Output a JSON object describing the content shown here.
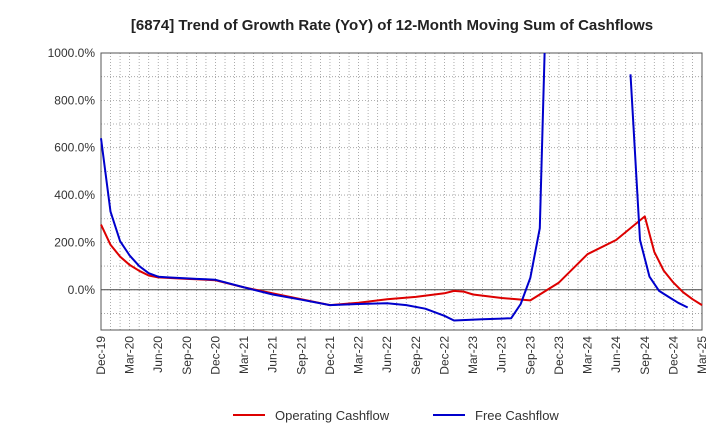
{
  "chart_data": {
    "type": "line",
    "title": "[6874]  Trend of Growth Rate (YoY) of 12-Month Moving Sum of Cashflows",
    "xlabel": "",
    "ylabel": "",
    "ylim": [
      -170,
      1000
    ],
    "y_ticks": [
      0,
      200,
      400,
      600,
      800,
      1000
    ],
    "y_tick_labels": [
      "0.0%",
      "200.0%",
      "400.0%",
      "600.0%",
      "800.0%",
      "1000.0%"
    ],
    "x_ticks": [
      "Dec-19",
      "Mar-20",
      "Jun-20",
      "Sep-20",
      "Dec-20",
      "Mar-21",
      "Jun-21",
      "Sep-21",
      "Dec-21",
      "Mar-22",
      "Jun-22",
      "Sep-22",
      "Dec-22",
      "Mar-23",
      "Jun-23",
      "Sep-23",
      "Dec-23",
      "Mar-24",
      "Jun-24",
      "Sep-24",
      "Dec-24",
      "Mar-25"
    ],
    "x_range": [
      0,
      63
    ],
    "grid": true,
    "legend_position": "bottom",
    "series": [
      {
        "name": "Operating Cashflow",
        "color": "#dd0000",
        "points": [
          [
            0,
            275
          ],
          [
            1,
            190
          ],
          [
            2,
            140
          ],
          [
            3,
            105
          ],
          [
            4,
            80
          ],
          [
            5,
            60
          ],
          [
            6,
            52
          ],
          [
            7,
            50
          ],
          [
            8,
            48
          ],
          [
            9,
            46
          ],
          [
            10,
            44
          ],
          [
            11,
            42
          ],
          [
            12,
            40
          ],
          [
            15,
            10
          ],
          [
            18,
            -15
          ],
          [
            21,
            -40
          ],
          [
            24,
            -65
          ],
          [
            27,
            -55
          ],
          [
            30,
            -40
          ],
          [
            33,
            -30
          ],
          [
            36,
            -15
          ],
          [
            37,
            -5
          ],
          [
            38,
            -8
          ],
          [
            39,
            -20
          ],
          [
            42,
            -35
          ],
          [
            45,
            -45
          ],
          [
            48,
            30
          ],
          [
            51,
            150
          ],
          [
            54,
            210
          ],
          [
            57,
            310
          ],
          [
            58,
            160
          ],
          [
            59,
            80
          ],
          [
            60,
            30
          ],
          [
            61,
            -10
          ],
          [
            62,
            -40
          ],
          [
            63,
            -65
          ]
        ]
      },
      {
        "name": "Free Cashflow",
        "color": "#0000cc",
        "points": [
          [
            0,
            640
          ],
          [
            1,
            330
          ],
          [
            2,
            205
          ],
          [
            3,
            145
          ],
          [
            4,
            100
          ],
          [
            5,
            70
          ],
          [
            6,
            55
          ],
          [
            7,
            52
          ],
          [
            8,
            50
          ],
          [
            9,
            48
          ],
          [
            10,
            46
          ],
          [
            11,
            44
          ],
          [
            12,
            42
          ],
          [
            15,
            10
          ],
          [
            18,
            -20
          ],
          [
            21,
            -42
          ],
          [
            24,
            -65
          ],
          [
            27,
            -60
          ],
          [
            30,
            -57
          ],
          [
            32,
            -65
          ],
          [
            34,
            -80
          ],
          [
            36,
            -110
          ],
          [
            37,
            -130
          ],
          [
            40,
            -125
          ],
          [
            42,
            -122
          ],
          [
            43,
            -120
          ],
          [
            44,
            -60
          ],
          [
            45,
            50
          ],
          [
            46,
            260
          ],
          [
            46.5,
            1000
          ]
        ]
      },
      {
        "name": "Free Cashflow (continued)",
        "color": "#0000cc",
        "points": [
          [
            55.5,
            910
          ],
          [
            56.5,
            210
          ],
          [
            57.5,
            55
          ],
          [
            58.5,
            -5
          ],
          [
            59.5,
            -30
          ],
          [
            60.5,
            -55
          ],
          [
            61.5,
            -75
          ]
        ]
      }
    ]
  },
  "legend": {
    "items": [
      {
        "label": "Operating Cashflow",
        "color": "#dd0000"
      },
      {
        "label": "Free Cashflow",
        "color": "#0000cc"
      }
    ]
  }
}
